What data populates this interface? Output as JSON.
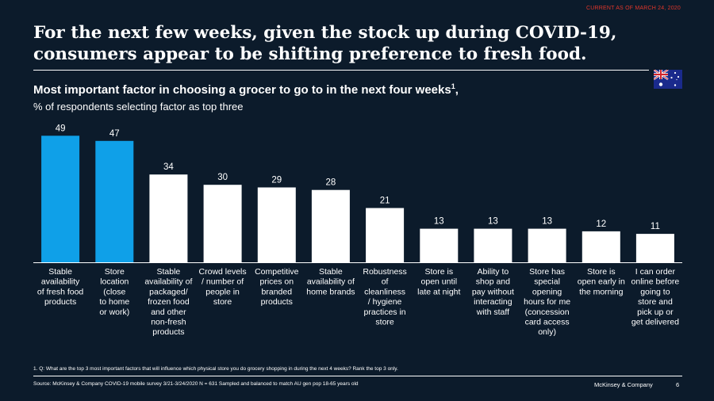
{
  "meta": {
    "current_as_of": "CURRENT AS OF MARCH 24, 2020",
    "headline_line1": "For the next few weeks, given the stock up during COVID-19,",
    "headline_line2": "consumers appear to be shifting preference to fresh food.",
    "subtitle": "Most important factor in choosing a grocer to go to in the next four weeks",
    "subtitle_sup": "1",
    "subtitle_suffix": ",",
    "unit": "% of respondents selecting factor as top three",
    "footnote": "1. Q: What are the top 3 most important factors that will influence which physical store you do grocery shopping in during the next 4 weeks? Rank the top 3 only.",
    "source": "Source: McKinsey & Company COVID-19 mobile survey 3/21-3/24/2020 N = 631 Sampled and balanced to match AU gen pop 18-65 years old",
    "brand": "McKinsey & Company",
    "page_number": "6",
    "flag_icon": "australia-flag-icon"
  },
  "chart_data": {
    "type": "bar",
    "title": "Most important factor in choosing a grocer to go to in the next four weeks",
    "ylabel": "% of respondents selecting factor as top three",
    "categories": [
      [
        "Stable",
        "availability",
        "of fresh food",
        "products"
      ],
      [
        "Store",
        "location",
        "(close",
        "to home",
        "or work)"
      ],
      [
        "Stable",
        "availability of",
        "packaged/",
        "frozen food",
        "and other",
        "non-fresh",
        "products"
      ],
      [
        "Crowd levels",
        "/ number of",
        "people in",
        "store"
      ],
      [
        "Competitive",
        "prices on",
        "branded",
        "products"
      ],
      [
        "Stable",
        "availability of",
        "home brands"
      ],
      [
        "Robustness",
        "of",
        "cleanliness",
        "/ hygiene",
        "practices in",
        "store"
      ],
      [
        "Store is",
        "open until",
        "late at night"
      ],
      [
        "Ability to",
        "shop and",
        "pay without",
        "interacting",
        "with staff"
      ],
      [
        "Store has",
        "special",
        "opening",
        "hours for me",
        "(concession",
        "card access",
        "only)"
      ],
      [
        "Store is",
        "open early in",
        "the morning"
      ],
      [
        "I can order",
        "online before",
        "going to",
        "store and",
        "pick up or",
        "get delivered"
      ]
    ],
    "values": [
      49,
      47,
      34,
      30,
      29,
      28,
      21,
      13,
      13,
      13,
      12,
      11
    ],
    "highlight": [
      true,
      true,
      false,
      false,
      false,
      false,
      false,
      false,
      false,
      false,
      false,
      false
    ],
    "colors": {
      "highlight": "#0fa0e8",
      "default": "#ffffff",
      "label": "#ffffff"
    },
    "ylim": [
      0,
      50
    ],
    "grid": false,
    "legend": "none"
  }
}
